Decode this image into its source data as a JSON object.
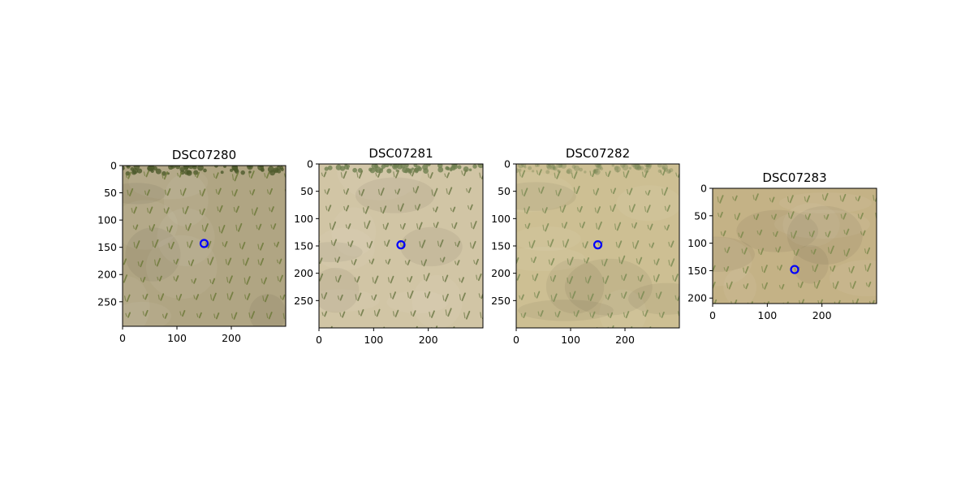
{
  "chart_data": [
    {
      "type": "image",
      "title": "DSC07280",
      "image_width": 300,
      "image_height": 295,
      "xticks": [
        "0",
        "100",
        "200"
      ],
      "yticks": [
        "0",
        "50",
        "100",
        "150",
        "200",
        "250"
      ],
      "marker": {
        "x": 150,
        "y": 143,
        "color": "#0000ff"
      },
      "colors": {
        "soil": "#b0a583",
        "plants": "#6e7a3a"
      }
    },
    {
      "type": "image",
      "title": "DSC07281",
      "image_width": 300,
      "image_height": 300,
      "xticks": [
        "0",
        "100",
        "200"
      ],
      "yticks": [
        "0",
        "50",
        "100",
        "150",
        "200",
        "250"
      ],
      "marker": {
        "x": 150,
        "y": 148,
        "color": "#0000ff"
      },
      "colors": {
        "soil": "#d1c5a5",
        "plants": "#6f7a48"
      }
    },
    {
      "type": "image",
      "title": "DSC07282",
      "image_width": 300,
      "image_height": 300,
      "xticks": [
        "0",
        "100",
        "200"
      ],
      "yticks": [
        "0",
        "50",
        "100",
        "150",
        "200",
        "250"
      ],
      "marker": {
        "x": 150,
        "y": 148,
        "color": "#0000ff"
      },
      "colors": {
        "soil": "#cdbf93",
        "plants": "#7d8c55"
      }
    },
    {
      "type": "image",
      "title": "DSC07283",
      "image_width": 300,
      "image_height": 210,
      "xticks": [
        "0",
        "100",
        "200"
      ],
      "yticks": [
        "0",
        "50",
        "100",
        "150",
        "200"
      ],
      "marker": {
        "x": 150,
        "y": 148,
        "color": "#0000ff"
      },
      "colors": {
        "soil": "#c4b286",
        "plants": "#7d8a4c"
      }
    }
  ]
}
